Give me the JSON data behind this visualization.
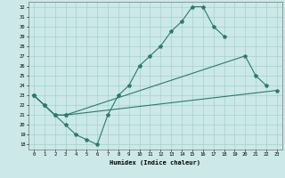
{
  "xlabel": "Humidex (Indice chaleur)",
  "background_color": "#cce8e8",
  "grid_color": "#99cccc",
  "line_color": "#2a7a6a",
  "xlim": [
    -0.5,
    23.5
  ],
  "ylim": [
    17.5,
    32.5
  ],
  "xticks": [
    0,
    1,
    2,
    3,
    4,
    5,
    6,
    7,
    8,
    9,
    10,
    11,
    12,
    13,
    14,
    15,
    16,
    17,
    18,
    19,
    20,
    21,
    22,
    23
  ],
  "yticks": [
    18,
    19,
    20,
    21,
    22,
    23,
    24,
    25,
    26,
    27,
    28,
    29,
    30,
    31,
    32
  ],
  "line1": [
    [
      0,
      23
    ],
    [
      1,
      22
    ],
    [
      2,
      21
    ],
    [
      3,
      20
    ],
    [
      4,
      19
    ],
    [
      5,
      18.5
    ],
    [
      6,
      18
    ],
    [
      7,
      21
    ],
    [
      8,
      23
    ],
    [
      9,
      24
    ],
    [
      10,
      26
    ],
    [
      11,
      27
    ],
    [
      12,
      28
    ],
    [
      13,
      29.5
    ],
    [
      14,
      30.5
    ],
    [
      15,
      32
    ],
    [
      16,
      32
    ],
    [
      17,
      30
    ],
    [
      18,
      29
    ]
  ],
  "line2": [
    [
      0,
      23
    ],
    [
      1,
      22
    ],
    [
      2,
      21
    ],
    [
      3,
      21
    ],
    [
      20,
      27
    ],
    [
      21,
      25
    ],
    [
      22,
      24
    ]
  ],
  "line3": [
    [
      0,
      23
    ],
    [
      1,
      22
    ],
    [
      2,
      21
    ],
    [
      3,
      21
    ],
    [
      23,
      23.5
    ]
  ]
}
